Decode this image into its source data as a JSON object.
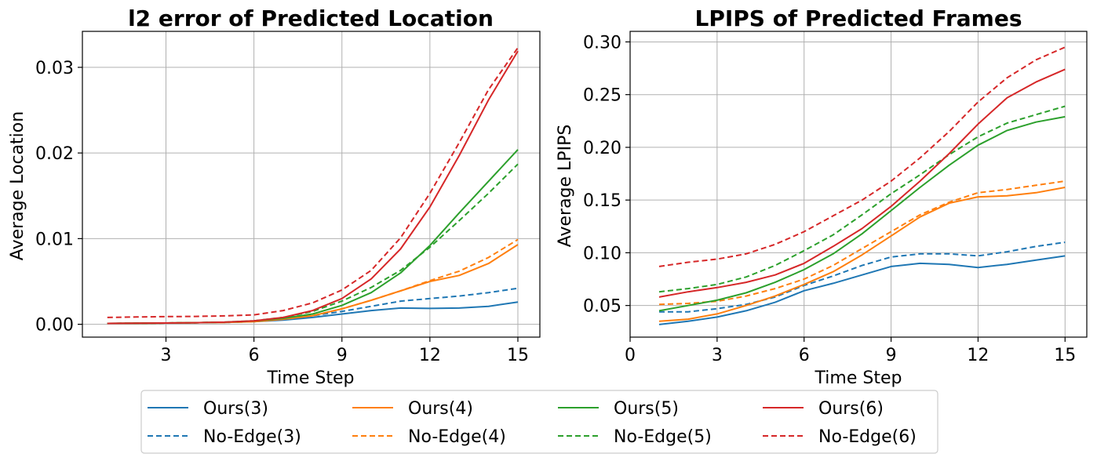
{
  "colors": {
    "s3": "#1f77b4",
    "s4": "#ff7f0e",
    "s5": "#2ca02c",
    "s6": "#d62728"
  },
  "legend": {
    "entries": [
      {
        "label": "Ours(3)",
        "color": "#1f77b4",
        "style": "solid"
      },
      {
        "label": "Ours(4)",
        "color": "#ff7f0e",
        "style": "solid"
      },
      {
        "label": "Ours(5)",
        "color": "#2ca02c",
        "style": "solid"
      },
      {
        "label": "Ours(6)",
        "color": "#d62728",
        "style": "solid"
      },
      {
        "label": "No-Edge(3)",
        "color": "#1f77b4",
        "style": "dashed"
      },
      {
        "label": "No-Edge(4)",
        "color": "#ff7f0e",
        "style": "dashed"
      },
      {
        "label": "No-Edge(5)",
        "color": "#2ca02c",
        "style": "dashed"
      },
      {
        "label": "No-Edge(6)",
        "color": "#d62728",
        "style": "dashed"
      }
    ]
  },
  "chart_data": [
    {
      "type": "line",
      "title": "l2 error of Predicted Location",
      "xlabel": "Time Step",
      "ylabel": "Average Location",
      "xlim": [
        0.15,
        15.75
      ],
      "ylim": [
        -0.0015,
        0.0342
      ],
      "xticks": [
        3,
        6,
        9,
        12,
        15
      ],
      "xtick_labels": [
        "3",
        "6",
        "9",
        "12",
        "15"
      ],
      "yticks": [
        0.0,
        0.01,
        0.02,
        0.03
      ],
      "ytick_labels": [
        "0.00",
        "0.01",
        "0.02",
        "0.03"
      ],
      "grid": true,
      "x": [
        1,
        2,
        3,
        4,
        5,
        6,
        7,
        8,
        9,
        10,
        11,
        12,
        13,
        14,
        15
      ],
      "series": [
        {
          "name": "Ours(3)",
          "color": "#1f77b4",
          "style": "solid",
          "values": [
            0.0001,
            0.00012,
            0.00015,
            0.00018,
            0.00022,
            0.0003,
            0.0005,
            0.0008,
            0.0012,
            0.0016,
            0.0019,
            0.00185,
            0.0019,
            0.0021,
            0.0026
          ]
        },
        {
          "name": "No-Edge(3)",
          "color": "#1f77b4",
          "style": "dashed",
          "values": [
            0.0001,
            0.00012,
            0.00015,
            0.00018,
            0.00022,
            0.0003,
            0.0006,
            0.001,
            0.0015,
            0.0021,
            0.0027,
            0.003,
            0.0033,
            0.0037,
            0.0042
          ]
        },
        {
          "name": "Ours(4)",
          "color": "#ff7f0e",
          "style": "solid",
          "values": [
            0.0001,
            0.00012,
            0.00015,
            0.00018,
            0.00022,
            0.0003,
            0.0006,
            0.001,
            0.0018,
            0.0028,
            0.0039,
            0.005,
            0.0057,
            0.0071,
            0.0093
          ]
        },
        {
          "name": "No-Edge(4)",
          "color": "#ff7f0e",
          "style": "dashed",
          "values": [
            0.0001,
            0.00012,
            0.00015,
            0.00018,
            0.00022,
            0.0003,
            0.0006,
            0.001,
            0.0018,
            0.0028,
            0.0039,
            0.0051,
            0.0062,
            0.0078,
            0.0099
          ]
        },
        {
          "name": "Ours(5)",
          "color": "#2ca02c",
          "style": "solid",
          "values": [
            0.0001,
            0.00012,
            0.00015,
            0.00018,
            0.00025,
            0.0004,
            0.0007,
            0.0012,
            0.0022,
            0.0037,
            0.006,
            0.0092,
            0.013,
            0.0167,
            0.0204
          ]
        },
        {
          "name": "No-Edge(5)",
          "color": "#2ca02c",
          "style": "dashed",
          "values": [
            0.0001,
            0.00012,
            0.00015,
            0.00018,
            0.00025,
            0.0004,
            0.0008,
            0.0015,
            0.0027,
            0.0043,
            0.0063,
            0.009,
            0.0121,
            0.0153,
            0.0187
          ]
        },
        {
          "name": "Ours(6)",
          "color": "#d62728",
          "style": "solid",
          "values": [
            0.0001,
            0.00012,
            0.00015,
            0.00018,
            0.00025,
            0.0004,
            0.0008,
            0.0016,
            0.003,
            0.0053,
            0.0088,
            0.0137,
            0.0197,
            0.0262,
            0.0319
          ]
        },
        {
          "name": "No-Edge(6)",
          "color": "#d62728",
          "style": "dashed",
          "values": [
            0.0008,
            0.00085,
            0.0009,
            0.00092,
            0.00098,
            0.0011,
            0.0016,
            0.0025,
            0.004,
            0.0063,
            0.0101,
            0.0153,
            0.0212,
            0.0274,
            0.0323
          ]
        }
      ]
    },
    {
      "type": "line",
      "title": "LPIPS of Predicted Frames",
      "xlabel": "Time Step",
      "ylabel": "Average LPIPS",
      "xlim": [
        0,
        15.75
      ],
      "ylim": [
        0.02,
        0.31
      ],
      "xticks": [
        0,
        3,
        6,
        9,
        12,
        15
      ],
      "xtick_labels": [
        "0",
        "3",
        "6",
        "9",
        "12",
        "15"
      ],
      "yticks": [
        0.05,
        0.1,
        0.15,
        0.2,
        0.25,
        0.3
      ],
      "ytick_labels": [
        "0.05",
        "0.10",
        "0.15",
        "0.20",
        "0.25",
        "0.30"
      ],
      "grid": true,
      "x": [
        1,
        2,
        3,
        4,
        5,
        6,
        7,
        8,
        9,
        10,
        11,
        12,
        13,
        14,
        15
      ],
      "series": [
        {
          "name": "Ours(3)",
          "color": "#1f77b4",
          "style": "solid",
          "values": [
            0.032,
            0.035,
            0.039,
            0.045,
            0.053,
            0.064,
            0.071,
            0.079,
            0.087,
            0.09,
            0.089,
            0.086,
            0.089,
            0.093,
            0.097
          ]
        },
        {
          "name": "No-Edge(3)",
          "color": "#1f77b4",
          "style": "dashed",
          "values": [
            0.044,
            0.044,
            0.047,
            0.051,
            0.058,
            0.069,
            0.078,
            0.088,
            0.096,
            0.099,
            0.099,
            0.097,
            0.101,
            0.106,
            0.11
          ]
        },
        {
          "name": "Ours(4)",
          "color": "#ff7f0e",
          "style": "solid",
          "values": [
            0.035,
            0.037,
            0.042,
            0.05,
            0.059,
            0.07,
            0.082,
            0.098,
            0.116,
            0.134,
            0.147,
            0.153,
            0.154,
            0.157,
            0.162
          ]
        },
        {
          "name": "No-Edge(4)",
          "color": "#ff7f0e",
          "style": "dashed",
          "values": [
            0.051,
            0.052,
            0.054,
            0.059,
            0.066,
            0.075,
            0.088,
            0.104,
            0.12,
            0.136,
            0.148,
            0.157,
            0.16,
            0.164,
            0.168
          ]
        },
        {
          "name": "Ours(5)",
          "color": "#2ca02c",
          "style": "solid",
          "values": [
            0.045,
            0.05,
            0.055,
            0.062,
            0.072,
            0.084,
            0.099,
            0.118,
            0.14,
            0.162,
            0.183,
            0.202,
            0.216,
            0.224,
            0.229
          ]
        },
        {
          "name": "No-Edge(5)",
          "color": "#2ca02c",
          "style": "dashed",
          "values": [
            0.063,
            0.066,
            0.07,
            0.077,
            0.088,
            0.102,
            0.117,
            0.136,
            0.156,
            0.174,
            0.193,
            0.21,
            0.223,
            0.231,
            0.239
          ]
        },
        {
          "name": "Ours(6)",
          "color": "#d62728",
          "style": "solid",
          "values": [
            0.058,
            0.063,
            0.067,
            0.072,
            0.079,
            0.09,
            0.106,
            0.123,
            0.144,
            0.168,
            0.194,
            0.222,
            0.247,
            0.262,
            0.274
          ]
        },
        {
          "name": "No-Edge(6)",
          "color": "#d62728",
          "style": "dashed",
          "values": [
            0.087,
            0.091,
            0.094,
            0.099,
            0.108,
            0.12,
            0.135,
            0.15,
            0.168,
            0.19,
            0.215,
            0.243,
            0.266,
            0.283,
            0.295
          ]
        }
      ]
    }
  ]
}
